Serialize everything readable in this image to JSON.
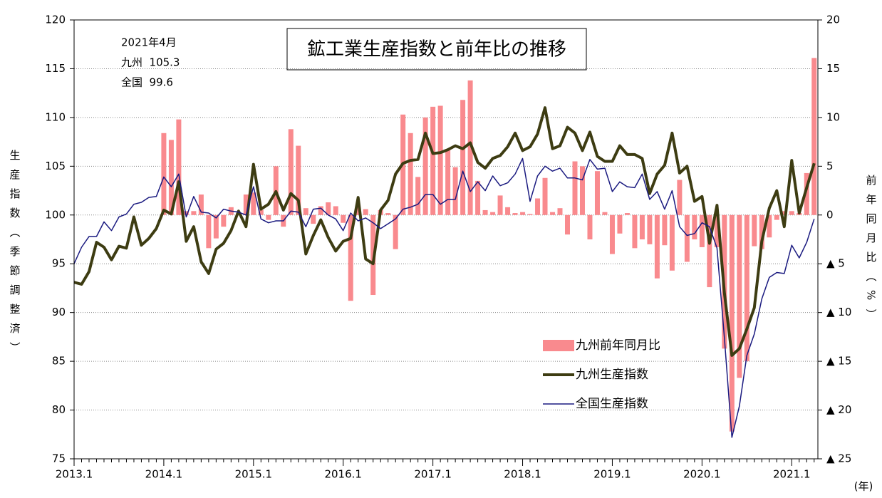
{
  "chart_data": {
    "type": "bar-line",
    "title": "鉱工業生産指数と前年比の推移",
    "annotation": [
      "2021年4月",
      "九州  105.3",
      "全国  99.6"
    ],
    "y_label": "生産指数（季節調整済）",
    "y2_label": "前年同月比（%）",
    "x_label": "(年)",
    "categories": [
      "2013.1",
      null,
      null,
      null,
      null,
      null,
      null,
      null,
      null,
      null,
      null,
      null,
      "2014.1",
      null,
      null,
      null,
      null,
      null,
      null,
      null,
      null,
      null,
      null,
      null,
      "2015.1",
      null,
      null,
      null,
      null,
      null,
      null,
      null,
      null,
      null,
      null,
      null,
      "2016.1",
      null,
      null,
      null,
      null,
      null,
      null,
      null,
      null,
      null,
      null,
      null,
      "2017.1",
      null,
      null,
      null,
      null,
      null,
      null,
      null,
      null,
      null,
      null,
      null,
      "2018.1",
      null,
      null,
      null,
      null,
      null,
      null,
      null,
      null,
      null,
      null,
      null,
      "2019.1",
      null,
      null,
      null,
      null,
      null,
      null,
      null,
      null,
      null,
      null,
      null,
      "2020.1",
      null,
      null,
      null,
      null,
      null,
      null,
      null,
      null,
      null,
      null,
      null,
      "2021.1",
      null,
      null,
      null
    ],
    "ylim": [
      75,
      120
    ],
    "yticks": [
      75,
      80,
      85,
      90,
      95,
      100,
      105,
      110,
      115,
      120
    ],
    "y2lim": [
      -25,
      20
    ],
    "y2ticks": [
      {
        "value": -25,
        "label": "▲ 25"
      },
      {
        "value": -20,
        "label": "▲ 20"
      },
      {
        "value": -15,
        "label": "▲ 15"
      },
      {
        "value": -10,
        "label": "▲ 10"
      },
      {
        "value": -5,
        "label": "▲ 5"
      },
      0,
      5,
      10,
      15,
      20
    ],
    "grid": true,
    "series": [
      {
        "name": "九州前年同月比",
        "kind": "bar",
        "axis": "y2",
        "color": "#f98a8e",
        "values": [
          null,
          null,
          null,
          null,
          null,
          null,
          null,
          null,
          null,
          null,
          null,
          null,
          8.4,
          7.7,
          9.8,
          0.4,
          0.4,
          2.1,
          -3.4,
          -2.4,
          -1.2,
          0.8,
          0.2,
          2.1,
          2.3,
          0.5,
          -0.5,
          5.0,
          -1.2,
          8.8,
          7.1,
          0.7,
          -0.9,
          0.9,
          1.3,
          0.9,
          -0.8,
          -8.8,
          0.8,
          0.6,
          -8.2,
          0.5,
          0.2,
          -3.5,
          10.3,
          8.4,
          3.9,
          10.0,
          11.1,
          11.2,
          6.7,
          4.9,
          11.8,
          13.8,
          3.5,
          0.5,
          0.3,
          2.0,
          0.8,
          0.2,
          0.3,
          0.1,
          1.7,
          3.8,
          0.3,
          0.7,
          -2.0,
          5.5,
          5.0,
          -2.5,
          4.5,
          0.3,
          -4.0,
          -1.9,
          0.2,
          -3.4,
          -2.5,
          -3.0,
          -6.5,
          -3.1,
          -5.7,
          3.6,
          -4.8,
          -2.5,
          -3.3,
          -7.4,
          -3.3,
          -13.7,
          -22.2,
          -16.7,
          -15.0,
          -3.2,
          -3.5,
          -2.3,
          -0.5,
          0.4,
          0.4,
          0.2,
          4.3,
          16.1
        ]
      },
      {
        "name": "九州生産指数",
        "kind": "line",
        "color": "#3d3c12",
        "width": 4,
        "values": [
          93.1,
          92.9,
          94.2,
          97.2,
          96.7,
          95.4,
          96.8,
          96.6,
          99.8,
          96.9,
          97.6,
          98.6,
          100.5,
          100.1,
          103.4,
          97.3,
          98.8,
          95.2,
          94.0,
          96.5,
          97.1,
          98.4,
          100.4,
          98.8,
          105.2,
          100.6,
          101.1,
          102.4,
          100.5,
          102.2,
          101.5,
          96.0,
          97.9,
          99.5,
          97.7,
          96.3,
          97.3,
          97.6,
          101.8,
          95.5,
          95.0,
          100.5,
          101.5,
          104.2,
          105.3,
          105.6,
          105.7,
          108.4,
          106.3,
          106.4,
          106.7,
          107.1,
          106.8,
          107.4,
          105.4,
          104.8,
          105.8,
          106.1,
          107.0,
          108.4,
          106.6,
          107.0,
          108.3,
          111.0,
          106.8,
          107.1,
          109.0,
          108.4,
          106.6,
          108.5,
          106.0,
          105.5,
          105.5,
          107.1,
          106.2,
          106.2,
          105.8,
          102.2,
          104.2,
          105.1,
          108.4,
          104.3,
          105.0,
          101.4,
          101.9,
          97.1,
          101.0,
          92.0,
          85.6,
          86.3,
          88.3,
          90.5,
          97.3,
          100.7,
          102.5,
          98.8,
          105.6,
          100.2,
          102.8,
          105.3
        ]
      },
      {
        "name": "全国生産指数",
        "kind": "line",
        "color": "#1a1a80",
        "width": 1.5,
        "values": [
          95.0,
          96.7,
          97.8,
          97.8,
          99.3,
          98.4,
          99.8,
          100.1,
          101.1,
          101.3,
          101.8,
          101.9,
          103.9,
          102.9,
          104.2,
          99.8,
          101.9,
          100.3,
          100.2,
          99.7,
          100.6,
          100.4,
          100.3,
          100.0,
          102.9,
          99.6,
          99.2,
          99.4,
          99.4,
          100.4,
          100.3,
          98.8,
          100.6,
          100.7,
          100.0,
          99.6,
          98.4,
          100.2,
          99.4,
          99.7,
          99.2,
          98.6,
          99.1,
          99.6,
          100.6,
          100.8,
          101.1,
          102.1,
          102.1,
          101.1,
          101.6,
          101.6,
          104.5,
          102.4,
          103.4,
          102.5,
          104.0,
          103.0,
          103.3,
          104.2,
          105.8,
          101.4,
          104.0,
          105.0,
          104.5,
          104.8,
          103.8,
          103.8,
          103.6,
          105.7,
          104.7,
          104.8,
          102.4,
          103.4,
          102.9,
          102.8,
          104.2,
          101.6,
          102.4,
          100.6,
          102.5,
          98.8,
          97.9,
          98.1,
          99.2,
          98.8,
          96.6,
          87.4,
          77.2,
          80.4,
          85.6,
          87.8,
          91.4,
          93.6,
          94.1,
          94.0,
          96.9,
          95.6,
          97.2,
          99.6
        ]
      }
    ]
  }
}
